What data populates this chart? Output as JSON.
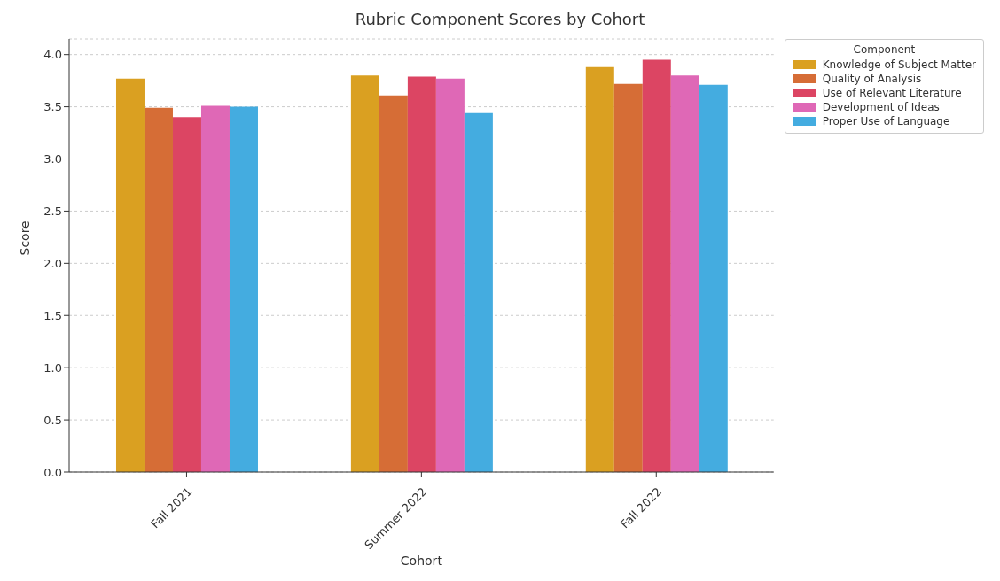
{
  "chart_data": {
    "type": "bar",
    "title": "Rubric Component Scores by Cohort",
    "xlabel": "Cohort",
    "ylabel": "Score",
    "legend_title": "Component",
    "categories": [
      "Fall 2021",
      "Summer 2022",
      "Fall 2022"
    ],
    "series": [
      {
        "name": "Knowledge of Subject Matter",
        "color": "#daa021",
        "values": [
          3.77,
          3.8,
          3.88
        ]
      },
      {
        "name": "Quality of Analysis",
        "color": "#d66d36",
        "values": [
          3.49,
          3.61,
          3.72
        ]
      },
      {
        "name": "Use of Relevant Literature",
        "color": "#dc4563",
        "values": [
          3.4,
          3.79,
          3.95
        ]
      },
      {
        "name": "Development of Ideas",
        "color": "#df68b6",
        "values": [
          3.51,
          3.77,
          3.8
        ]
      },
      {
        "name": "Proper Use of Language",
        "color": "#44ace0",
        "values": [
          3.5,
          3.44,
          3.71
        ]
      }
    ],
    "ylim": [
      0,
      4.15
    ],
    "yticks": [
      {
        "value": 0,
        "label": "0.0"
      },
      {
        "value": 0.5,
        "label": "0.5"
      },
      {
        "value": 1,
        "label": "1.0"
      },
      {
        "value": 1.5,
        "label": "1.5"
      },
      {
        "value": 2,
        "label": "2.0"
      },
      {
        "value": 2.5,
        "label": "2.5"
      },
      {
        "value": 3,
        "label": "3.0"
      },
      {
        "value": 3.5,
        "label": "3.5"
      },
      {
        "value": 4,
        "label": "4.0"
      }
    ],
    "grid": "y",
    "legend": "top right"
  }
}
